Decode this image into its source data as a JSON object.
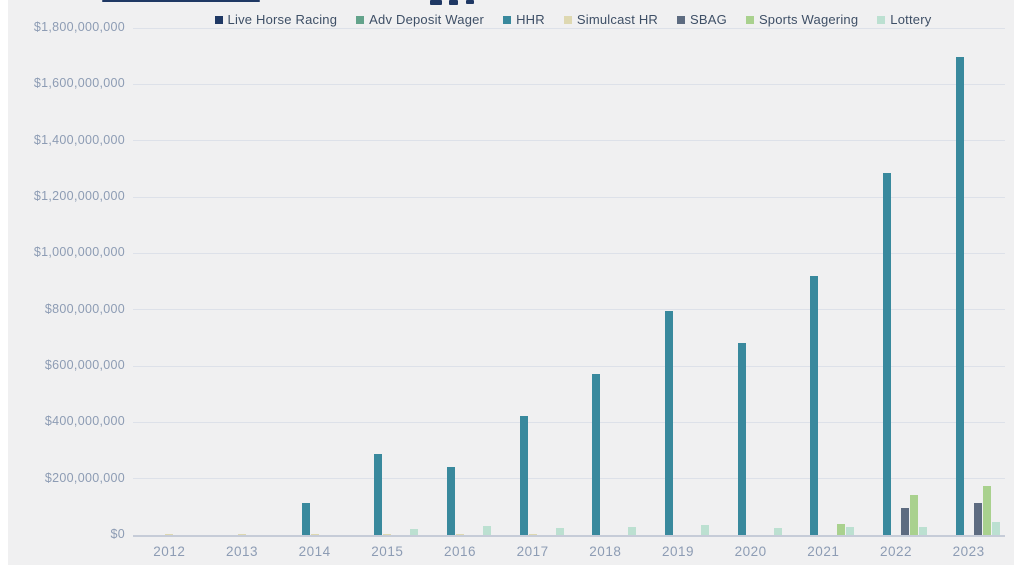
{
  "page": {
    "background_color": "#f0f0f1",
    "accent_text_color": "#3e4f66",
    "axis_text_color": "#8d9cb4"
  },
  "chart_data": {
    "type": "bar",
    "title": "",
    "xlabel": "",
    "ylabel": "",
    "grid": true,
    "legend_position": "top",
    "ylim": [
      0,
      1800000000
    ],
    "ytick_step": 200000000,
    "ytick_labels": [
      "$0",
      "$200,000,000",
      "$400,000,000",
      "$600,000,000",
      "$800,000,000",
      "$1,000,000,000",
      "$1,200,000,000",
      "$1,400,000,000",
      "$1,600,000,000",
      "$1,800,000,000"
    ],
    "categories": [
      "2012",
      "2013",
      "2014",
      "2015",
      "2016",
      "2017",
      "2018",
      "2019",
      "2020",
      "2021",
      "2022",
      "2023"
    ],
    "series": [
      {
        "name": "Live Horse Racing",
        "color": "#1f3864",
        "values": [
          0,
          0,
          0,
          0,
          0,
          0,
          0,
          0,
          0,
          0,
          0,
          0
        ]
      },
      {
        "name": "Adv Deposit Wager",
        "color": "#63a38b",
        "values": [
          0,
          0,
          0,
          0,
          0,
          0,
          0,
          0,
          0,
          0,
          0,
          0
        ]
      },
      {
        "name": "HHR",
        "color": "#39899d",
        "values": [
          0,
          0,
          115000000,
          288000000,
          240000000,
          422000000,
          573000000,
          797000000,
          680000000,
          920000000,
          1285000000,
          1697000000
        ]
      },
      {
        "name": "Simulcast HR",
        "color": "#ded8b1",
        "values": [
          4000000,
          4000000,
          5000000,
          5000000,
          2000000,
          2000000,
          0,
          0,
          0,
          0,
          0,
          0
        ]
      },
      {
        "name": "SBAG",
        "color": "#5d6b80",
        "values": [
          0,
          0,
          0,
          0,
          0,
          0,
          0,
          0,
          0,
          0,
          96000000,
          114000000
        ]
      },
      {
        "name": "Sports Wagering",
        "color": "#a9d18e",
        "values": [
          0,
          0,
          0,
          0,
          0,
          0,
          0,
          0,
          0,
          40000000,
          142000000,
          174000000
        ]
      },
      {
        "name": "Lottery",
        "color": "#bce0d1",
        "values": [
          0,
          0,
          0,
          21000000,
          32000000,
          24000000,
          27000000,
          36000000,
          26000000,
          28000000,
          29000000,
          45000000
        ]
      }
    ]
  }
}
